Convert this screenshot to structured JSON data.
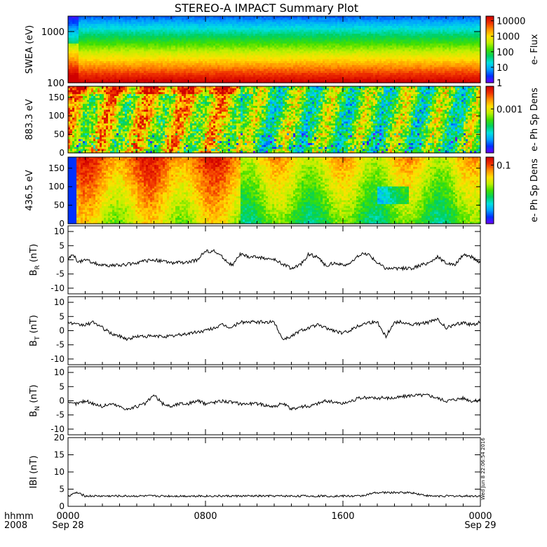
{
  "title": "STEREO-A IMPACT Summary Plot",
  "bottom": {
    "row1_label": "hhmm",
    "row2_label": "2008",
    "ticks": [
      {
        "time": "0000",
        "date": "Sep 28"
      },
      {
        "time": "0800",
        "date": ""
      },
      {
        "time": "1600",
        "date": ""
      },
      {
        "time": "0000",
        "date": "Sep 29"
      }
    ]
  },
  "timestamp": "Wed Jun  8 22:06:54 2016",
  "colors": {
    "spectrogram_scale": [
      "#7000ff",
      "#0030ff",
      "#00a0ff",
      "#00e0e0",
      "#00d060",
      "#40e000",
      "#c0f000",
      "#ffe000",
      "#ff9000",
      "#f03000",
      "#d00000"
    ],
    "axis": "#000000",
    "trace": "#000000"
  },
  "chart_data": [
    {
      "type": "heatmap",
      "panel": "swea",
      "ylabel": "SWEA (eV)",
      "y_scale": "log",
      "ylim": [
        100,
        2000
      ],
      "yticks": [
        "1000",
        "100"
      ],
      "colorbar_label": "e- Flux",
      "colorbar_scale": "log",
      "colorbar_range": [
        1,
        20000
      ],
      "colorbar_ticks": [
        "10000",
        "1000",
        "100",
        "10",
        "1"
      ],
      "description_values": {
        "high_energy_flux": 10,
        "low_energy_flux": 10000
      }
    },
    {
      "type": "heatmap",
      "panel": "pad883",
      "ylabel": "883.3 eV",
      "ylim": [
        0,
        180
      ],
      "yticks": [
        "150",
        "100",
        "50",
        "0"
      ],
      "colorbar_label": "e- Ph Sp Dens",
      "colorbar_ticks": [
        "0.001"
      ]
    },
    {
      "type": "heatmap",
      "panel": "pad436",
      "ylabel": "436.5 eV",
      "ylim": [
        0,
        180
      ],
      "yticks": [
        "150",
        "100",
        "50",
        "0"
      ],
      "colorbar_label": "e- Ph Sp Dens",
      "colorbar_ticks": [
        "0.1"
      ]
    },
    {
      "type": "line",
      "panel": "br",
      "ylabel": "B",
      "ylabel_sub": "R",
      "ylabel_unit": " (nT)",
      "ylim": [
        -12,
        12
      ],
      "yticks": [
        10,
        5,
        0,
        -5,
        -10
      ],
      "x_hours": [
        0,
        0.3,
        0.6,
        1,
        1.5,
        2,
        3,
        4,
        5,
        6,
        7,
        7.5,
        8,
        8.5,
        9,
        9.3,
        9.6,
        10,
        10.5,
        11,
        12,
        13,
        13.5,
        14,
        14.5,
        15,
        15.5,
        16,
        16.5,
        17,
        17.5,
        18,
        18.5,
        19,
        20,
        21,
        21.5,
        22,
        22.5,
        23,
        23.5,
        24
      ],
      "values": [
        0,
        2,
        -1,
        0,
        -1,
        -2,
        -2,
        -1,
        0,
        -1,
        -1,
        0,
        3,
        3,
        1,
        -1,
        -2,
        2,
        1,
        1,
        0,
        -3,
        -2,
        2,
        1,
        -2,
        -1,
        -2,
        -1,
        2,
        2,
        -1,
        -3,
        -3,
        -3,
        -1,
        1,
        -1,
        -2,
        2,
        1,
        -1
      ]
    },
    {
      "type": "line",
      "panel": "bt",
      "ylabel": "B",
      "ylabel_sub": "T",
      "ylabel_unit": " (nT)",
      "ylim": [
        -12,
        12
      ],
      "yticks": [
        10,
        5,
        0,
        -5,
        -10
      ],
      "x_hours": [
        0,
        0.5,
        1,
        1.5,
        2,
        2.5,
        3,
        3.5,
        4,
        5,
        6,
        7,
        8,
        8.5,
        9,
        9.5,
        10,
        11,
        12,
        12.5,
        13,
        13.5,
        14,
        14.5,
        15,
        16,
        17,
        17.5,
        18,
        18.5,
        19,
        19.5,
        20,
        21,
        21.5,
        22,
        22.5,
        23,
        23.5,
        24
      ],
      "values": [
        3,
        2,
        2,
        3,
        1,
        -1,
        -2,
        -3,
        -2,
        -2,
        -2,
        -1,
        0,
        1,
        2,
        1,
        3,
        3,
        3,
        -3,
        -2,
        0,
        1,
        2,
        1,
        -1,
        2,
        3,
        3,
        -2,
        3,
        3,
        2,
        3,
        4,
        1,
        2,
        3,
        2,
        3
      ]
    },
    {
      "type": "line",
      "panel": "bn",
      "ylabel": "B",
      "ylabel_sub": "N",
      "ylabel_unit": " (nT)",
      "ylim": [
        -12,
        12
      ],
      "yticks": [
        10,
        5,
        0,
        -5,
        -10
      ],
      "x_hours": [
        0,
        0.5,
        1,
        1.5,
        2,
        2.5,
        3,
        3.5,
        4,
        4.5,
        5,
        5.5,
        6,
        6.5,
        7,
        7.5,
        8,
        9,
        10,
        11,
        12,
        12.5,
        13,
        13.5,
        14,
        14.5,
        15,
        16,
        17,
        18,
        19,
        20,
        21,
        22,
        23,
        23.5,
        24
      ],
      "values": [
        -1,
        -1,
        0,
        -1,
        -2,
        -1,
        -2,
        -3,
        -2,
        -1,
        2,
        -1,
        -2,
        -1,
        -1,
        0,
        -1,
        0,
        -1,
        -1,
        -2,
        -1,
        -3,
        -2,
        -2,
        -1,
        0,
        -1,
        1,
        1,
        1,
        2,
        2,
        0,
        1,
        0,
        0
      ]
    },
    {
      "type": "line",
      "panel": "bmag",
      "ylabel": "IBI (nT)",
      "ylim": [
        0,
        20
      ],
      "yticks": [
        20,
        15,
        10,
        5,
        0
      ],
      "x_hours": [
        0,
        0.5,
        1,
        2,
        3,
        4,
        5,
        6,
        7,
        8,
        9,
        10,
        11,
        12,
        13,
        14,
        15,
        16,
        17,
        18,
        19,
        20,
        21,
        22,
        23,
        24
      ],
      "values": [
        3,
        4,
        3,
        3,
        3,
        3,
        3,
        3,
        3,
        3,
        3,
        3,
        3,
        3,
        3,
        3,
        3,
        3,
        3,
        4,
        4,
        4,
        3,
        3,
        3,
        3
      ]
    }
  ]
}
